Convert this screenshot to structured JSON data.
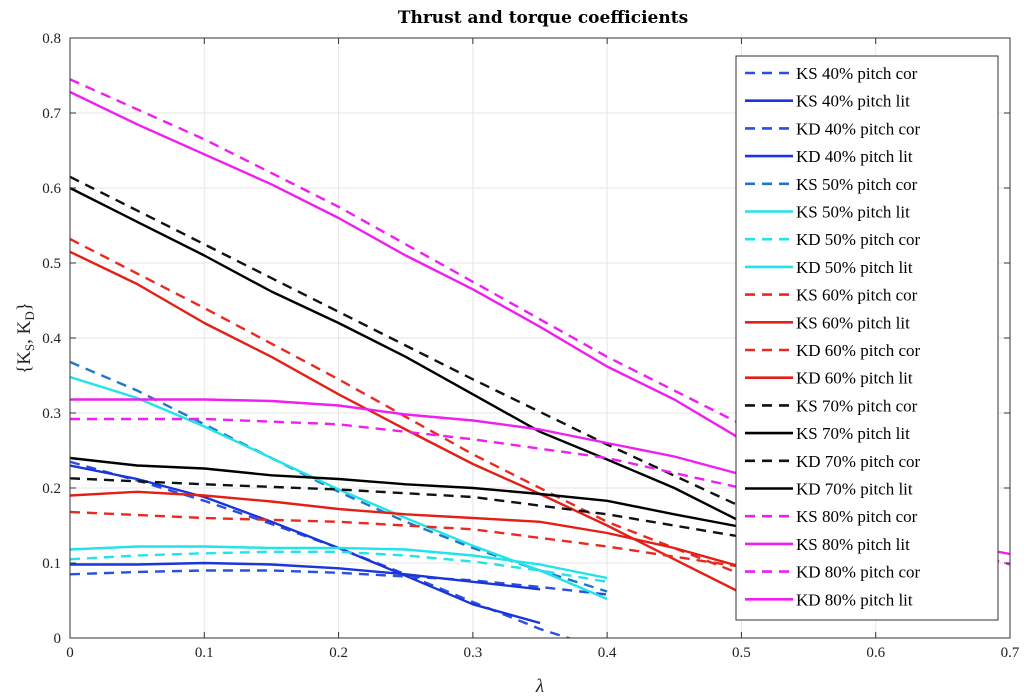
{
  "chart_data": {
    "type": "line",
    "title": "Thrust and torque coefficients",
    "xlabel": "λ",
    "ylabel": "{K_S, K_D}",
    "ylabel_parts": {
      "open": "{K",
      "sub1": "S",
      "mid": ", K",
      "sub2": "D",
      "close": "}"
    },
    "xlim": [
      0,
      0.7
    ],
    "ylim": [
      0,
      0.8
    ],
    "xticks": [
      "0",
      "0.1",
      "0.2",
      "0.3",
      "0.4",
      "0.5",
      "0.6",
      "0.7"
    ],
    "yticks": [
      "0",
      "0.1",
      "0.2",
      "0.3",
      "0.4",
      "0.5",
      "0.6",
      "0.7",
      "0.8"
    ],
    "grid": true,
    "legend_position": "top-right",
    "series": [
      {
        "name": "KS 40% pitch cor",
        "color": "#2b4fe0",
        "dash": true,
        "x": [
          0,
          0.05,
          0.1,
          0.15,
          0.2,
          0.25,
          0.3,
          0.35,
          0.38
        ],
        "y": [
          0.235,
          0.21,
          0.183,
          0.152,
          0.12,
          0.085,
          0.048,
          0.012,
          -0.005
        ]
      },
      {
        "name": "KS 40% pitch lit",
        "color": "#1a35d8",
        "dash": false,
        "x": [
          0,
          0.05,
          0.1,
          0.15,
          0.2,
          0.25,
          0.3,
          0.35
        ],
        "y": [
          0.23,
          0.212,
          0.188,
          0.155,
          0.12,
          0.083,
          0.045,
          0.02
        ]
      },
      {
        "name": "KD 40% pitch cor",
        "color": "#2b4fe0",
        "dash": true,
        "x": [
          0,
          0.05,
          0.1,
          0.15,
          0.2,
          0.25,
          0.3,
          0.35,
          0.4
        ],
        "y": [
          0.085,
          0.088,
          0.09,
          0.09,
          0.087,
          0.082,
          0.077,
          0.068,
          0.058
        ]
      },
      {
        "name": "KD 40% pitch lit",
        "color": "#1a35d8",
        "dash": false,
        "x": [
          0,
          0.05,
          0.1,
          0.15,
          0.2,
          0.25,
          0.3,
          0.35
        ],
        "y": [
          0.098,
          0.098,
          0.1,
          0.098,
          0.093,
          0.085,
          0.075,
          0.065
        ]
      },
      {
        "name": "KS 50% pitch cor",
        "color": "#1e78c8",
        "dash": true,
        "x": [
          0,
          0.05,
          0.1,
          0.15,
          0.2,
          0.25,
          0.3,
          0.35,
          0.4
        ],
        "y": [
          0.368,
          0.33,
          0.285,
          0.24,
          0.195,
          0.155,
          0.12,
          0.09,
          0.062
        ]
      },
      {
        "name": "KS 50% pitch lit",
        "color": "#22e3ea",
        "dash": false,
        "x": [
          0,
          0.05,
          0.1,
          0.15,
          0.2,
          0.25,
          0.3,
          0.35,
          0.4
        ],
        "y": [
          0.348,
          0.32,
          0.282,
          0.24,
          0.198,
          0.16,
          0.123,
          0.09,
          0.052
        ]
      },
      {
        "name": "KD 50% pitch cor",
        "color": "#22e3ea",
        "dash": true,
        "x": [
          0,
          0.05,
          0.1,
          0.15,
          0.2,
          0.25,
          0.3,
          0.35,
          0.4
        ],
        "y": [
          0.105,
          0.11,
          0.113,
          0.115,
          0.115,
          0.11,
          0.102,
          0.09,
          0.075
        ]
      },
      {
        "name": "KD 50% pitch lit",
        "color": "#22e3ea",
        "dash": false,
        "x": [
          0,
          0.05,
          0.1,
          0.15,
          0.2,
          0.25,
          0.3,
          0.35,
          0.4
        ],
        "y": [
          0.118,
          0.122,
          0.122,
          0.12,
          0.12,
          0.118,
          0.11,
          0.098,
          0.08
        ]
      },
      {
        "name": "KS 60% pitch cor",
        "color": "#e82a20",
        "dash": true,
        "x": [
          0,
          0.1,
          0.2,
          0.3,
          0.4,
          0.5
        ],
        "y": [
          0.532,
          0.44,
          0.345,
          0.245,
          0.155,
          0.085
        ]
      },
      {
        "name": "KS 60% pitch lit",
        "color": "#e32016",
        "dash": false,
        "x": [
          0,
          0.05,
          0.1,
          0.15,
          0.2,
          0.25,
          0.3,
          0.35,
          0.4,
          0.45,
          0.5
        ],
        "y": [
          0.515,
          0.472,
          0.42,
          0.375,
          0.325,
          0.278,
          0.232,
          0.192,
          0.15,
          0.105,
          0.06
        ]
      },
      {
        "name": "KD 60% pitch cor",
        "color": "#e82a20",
        "dash": true,
        "x": [
          0,
          0.1,
          0.2,
          0.3,
          0.4,
          0.5
        ],
        "y": [
          0.168,
          0.16,
          0.155,
          0.145,
          0.122,
          0.095
        ]
      },
      {
        "name": "KD 60% pitch lit",
        "color": "#e32016",
        "dash": false,
        "x": [
          0,
          0.05,
          0.1,
          0.15,
          0.2,
          0.25,
          0.3,
          0.35,
          0.4,
          0.45,
          0.5
        ],
        "y": [
          0.19,
          0.195,
          0.19,
          0.182,
          0.172,
          0.165,
          0.16,
          0.155,
          0.14,
          0.12,
          0.095
        ]
      },
      {
        "name": "KS 70% pitch cor",
        "color": "#111111",
        "dash": true,
        "x": [
          0,
          0.1,
          0.2,
          0.3,
          0.4,
          0.5
        ],
        "y": [
          0.615,
          0.525,
          0.435,
          0.345,
          0.258,
          0.175
        ]
      },
      {
        "name": "KS 70% pitch lit",
        "color": "#000000",
        "dash": false,
        "x": [
          0,
          0.05,
          0.1,
          0.15,
          0.2,
          0.25,
          0.3,
          0.35,
          0.4,
          0.45,
          0.5
        ],
        "y": [
          0.6,
          0.555,
          0.51,
          0.462,
          0.42,
          0.375,
          0.325,
          0.275,
          0.238,
          0.2,
          0.155
        ]
      },
      {
        "name": "KD 70% pitch cor",
        "color": "#111111",
        "dash": true,
        "x": [
          0,
          0.1,
          0.2,
          0.3,
          0.4,
          0.5
        ],
        "y": [
          0.213,
          0.205,
          0.198,
          0.188,
          0.165,
          0.135
        ]
      },
      {
        "name": "KD 70% pitch lit",
        "color": "#000000",
        "dash": false,
        "x": [
          0,
          0.05,
          0.1,
          0.15,
          0.2,
          0.25,
          0.3,
          0.35,
          0.4,
          0.45,
          0.5
        ],
        "y": [
          0.24,
          0.23,
          0.226,
          0.217,
          0.212,
          0.205,
          0.2,
          0.192,
          0.183,
          0.165,
          0.148
        ]
      },
      {
        "name": "KS 80% pitch cor",
        "color": "#ee1ff0",
        "dash": true,
        "x": [
          0,
          0.1,
          0.2,
          0.3,
          0.4,
          0.5
        ],
        "y": [
          0.745,
          0.665,
          0.575,
          0.475,
          0.375,
          0.285
        ]
      },
      {
        "name": "KS 80% pitch lit",
        "color": "#ee1ff0",
        "dash": false,
        "x": [
          0,
          0.05,
          0.1,
          0.15,
          0.2,
          0.25,
          0.3,
          0.35,
          0.4,
          0.45,
          0.5
        ],
        "y": [
          0.728,
          0.685,
          0.645,
          0.605,
          0.56,
          0.51,
          0.465,
          0.415,
          0.362,
          0.318,
          0.265
        ]
      },
      {
        "name": "KD 80% pitch cor",
        "color": "#ee1ff0",
        "dash": true,
        "x": [
          0,
          0.1,
          0.2,
          0.3,
          0.4,
          0.5,
          0.6,
          0.7
        ],
        "y": [
          0.292,
          0.292,
          0.285,
          0.265,
          0.24,
          0.2,
          0.15,
          0.098
        ]
      },
      {
        "name": "KD 80% pitch lit",
        "color": "#ee1ff0",
        "dash": false,
        "x": [
          0,
          0.05,
          0.1,
          0.15,
          0.2,
          0.25,
          0.3,
          0.35,
          0.4,
          0.45,
          0.5,
          0.55,
          0.6,
          0.65,
          0.7
        ],
        "y": [
          0.318,
          0.318,
          0.318,
          0.316,
          0.31,
          0.298,
          0.29,
          0.278,
          0.26,
          0.242,
          0.218,
          0.192,
          0.162,
          0.128,
          0.112
        ]
      }
    ]
  }
}
